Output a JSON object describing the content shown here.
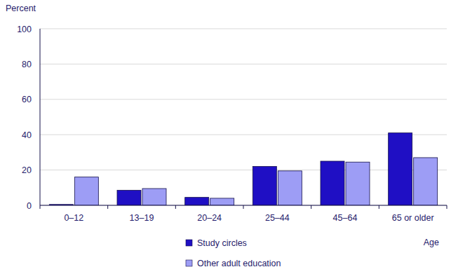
{
  "chart_data": {
    "type": "bar",
    "y_label": "Percent",
    "x_label": "Age",
    "categories": [
      "0–12",
      "13–19",
      "20–24",
      "25–44",
      "45–64",
      "65 or older"
    ],
    "series": [
      {
        "name": "Study circles",
        "color": "#1f0fc4",
        "values": [
          0.5,
          8.5,
          4.5,
          22,
          25,
          41
        ]
      },
      {
        "name": "Other adult education",
        "color": "#9d9df5",
        "values": [
          16,
          9.5,
          4,
          19.5,
          24.5,
          27
        ]
      }
    ],
    "ylim": [
      0,
      100
    ],
    "yticks": [
      0,
      20,
      40,
      60,
      80,
      100
    ],
    "grid": true,
    "legend": "bottom"
  }
}
